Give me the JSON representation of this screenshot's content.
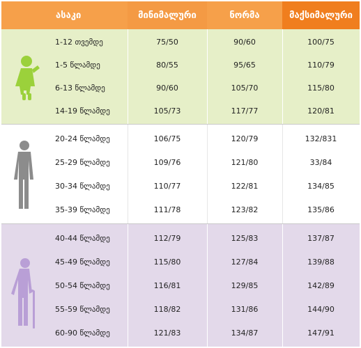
{
  "header": {
    "age": "ასაკი",
    "min": "მინიმალური",
    "norm": "ნორმა",
    "max": "მაქსიმალური"
  },
  "colors": {
    "header_orange": "#f6a04a",
    "header_orange_dark": "#f07e1e",
    "group_child": "#e6efc8",
    "group_adult": "#ffffff",
    "group_senior": "#e3d9ea",
    "icon_child": "#9bd13b",
    "icon_adult": "#8c8c8c",
    "icon_senior": "#b99fd6"
  },
  "groups": [
    {
      "icon": "child-figure-icon",
      "rows": [
        {
          "age": "1-12 თვემდე",
          "min": "75/50",
          "norm": "90/60",
          "max": "100/75"
        },
        {
          "age": "1-5 წლამდე",
          "min": "80/55",
          "norm": "95/65",
          "max": "110/79"
        },
        {
          "age": "6-13 წლამდე",
          "min": "90/60",
          "norm": "105/70",
          "max": "115/80"
        },
        {
          "age": "14-19 წლამდე",
          "min": "105/73",
          "norm": "117/77",
          "max": "120/81"
        }
      ]
    },
    {
      "icon": "adult-figure-icon",
      "rows": [
        {
          "age": "20-24 წლამდე",
          "min": "106/75",
          "norm": "120/79",
          "max": "132/831"
        },
        {
          "age": "25-29 წლამდე",
          "min": "109/76",
          "norm": "121/80",
          "max": "33/84"
        },
        {
          "age": "30-34 წლამდე",
          "min": "110/77",
          "norm": "122/81",
          "max": "134/85"
        },
        {
          "age": "35-39 წლამდე",
          "min": "111/78",
          "norm": "123/82",
          "max": "135/86"
        }
      ]
    },
    {
      "icon": "elderly-figure-icon",
      "rows": [
        {
          "age": "40-44 წლამდე",
          "min": "112/79",
          "norm": "125/83",
          "max": "137/87"
        },
        {
          "age": "45-49 წლამდე",
          "min": "115/80",
          "norm": "127/84",
          "max": "139/88"
        },
        {
          "age": "50-54 წლამდე",
          "min": "116/81",
          "norm": "129/85",
          "max": "142/89"
        },
        {
          "age": "55-59 წლამდე",
          "min": "118/82",
          "norm": "131/86",
          "max": "144/90"
        },
        {
          "age": "60-90 წლამდე",
          "min": "121/83",
          "norm": "134/87",
          "max": "147/91"
        }
      ]
    }
  ]
}
